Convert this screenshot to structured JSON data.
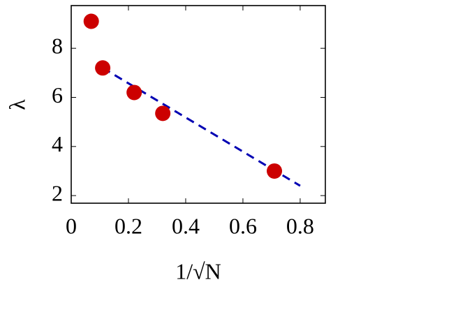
{
  "chart_data": {
    "type": "scatter",
    "xlabel": "1/√N",
    "ylabel": "λ",
    "series": [
      {
        "type": "scatter",
        "color": "#cc0000",
        "x": [
          0.07,
          0.11,
          0.22,
          0.32,
          0.71
        ],
        "values": [
          9.1,
          7.2,
          6.2,
          5.35,
          3.0
        ]
      },
      {
        "type": "line",
        "dashed": true,
        "color": "#0000b3",
        "x": [
          0.11,
          0.8
        ],
        "values": [
          7.2,
          2.4
        ]
      }
    ],
    "xlim": [
      0,
      0.888
    ],
    "ylim": [
      1.69,
      9.74
    ],
    "xticks": [
      0,
      0.2,
      0.4,
      0.6,
      0.8
    ],
    "yticks": [
      2,
      4,
      6,
      8
    ]
  }
}
